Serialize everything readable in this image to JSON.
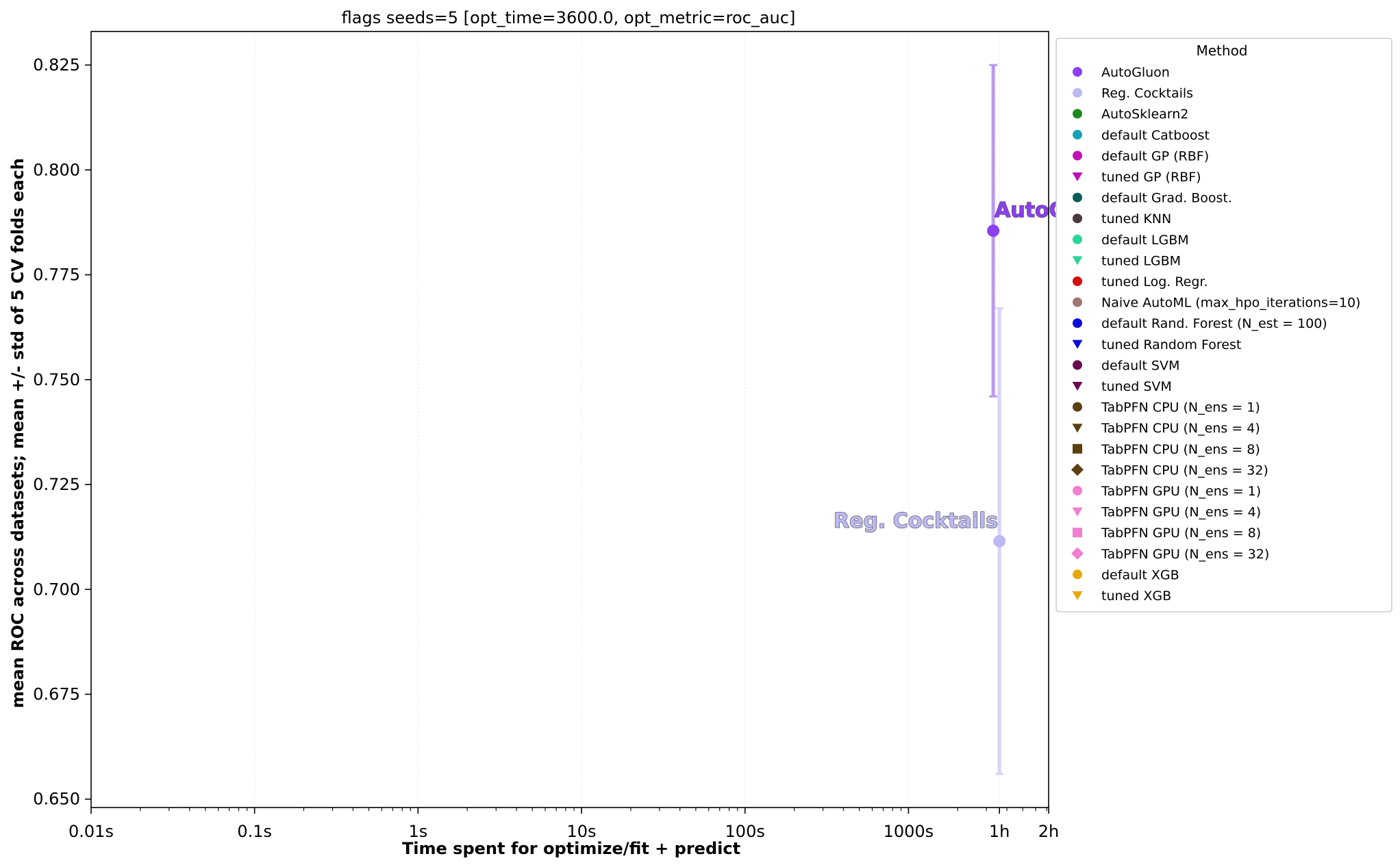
{
  "chart_data": {
    "type": "scatter",
    "title": "flags seeds=5 [opt_time=3600.0, opt_metric=roc_auc]",
    "xlabel": "Time spent for optimize/fit + predict",
    "ylabel": "mean ROC across datasets; mean +/- std of 5 CV folds each",
    "x_scale": "log",
    "xlim_seconds": [
      0.01,
      7200
    ],
    "ylim": [
      0.648,
      0.833
    ],
    "x_ticks": [
      {
        "value": 0.01,
        "label": "0.01s"
      },
      {
        "value": 0.1,
        "label": "0.1s"
      },
      {
        "value": 1,
        "label": "1s"
      },
      {
        "value": 10,
        "label": "10s"
      },
      {
        "value": 100,
        "label": "100s"
      },
      {
        "value": 1000,
        "label": "1000s"
      },
      {
        "value": 3600,
        "label": "1h"
      },
      {
        "value": 7200,
        "label": "2h"
      }
    ],
    "y_ticks": [
      {
        "value": 0.65,
        "label": "0.650"
      },
      {
        "value": 0.675,
        "label": "0.675"
      },
      {
        "value": 0.7,
        "label": "0.700"
      },
      {
        "value": 0.725,
        "label": "0.725"
      },
      {
        "value": 0.75,
        "label": "0.750"
      },
      {
        "value": 0.775,
        "label": "0.775"
      },
      {
        "value": 0.8,
        "label": "0.800"
      },
      {
        "value": 0.825,
        "label": "0.825"
      }
    ],
    "grid": "vertical-dotted",
    "points": [
      {
        "name": "AutoGluon",
        "x": 3300,
        "y": 0.7855,
        "y_low": 0.746,
        "y_high": 0.825,
        "color": "#8a3ff0",
        "err_color": "#bb99f0",
        "label": "AutoGluon",
        "label_side": "right"
      },
      {
        "name": "Reg. Cocktails",
        "x": 3600,
        "y": 0.7115,
        "y_low": 0.656,
        "y_high": 0.767,
        "color": "#bdb9f3",
        "err_color": "#d6d3f8",
        "label": "Reg. Cocktails",
        "label_side": "left"
      }
    ],
    "legend": {
      "title": "Method",
      "placement": "outside-right-top",
      "entries": [
        {
          "label": "AutoGluon",
          "color": "#8a3ff0",
          "marker": "circle"
        },
        {
          "label": "Reg. Cocktails",
          "color": "#bdb9f3",
          "marker": "circle"
        },
        {
          "label": "AutoSklearn2",
          "color": "#1a8a1a",
          "marker": "circle"
        },
        {
          "label": "default Catboost",
          "color": "#13a3b5",
          "marker": "circle"
        },
        {
          "label": "default GP (RBF)",
          "color": "#c20fb8",
          "marker": "circle"
        },
        {
          "label": "tuned GP (RBF)",
          "color": "#c20fb8",
          "marker": "triangle"
        },
        {
          "label": "default Grad. Boost.",
          "color": "#0b5a5a",
          "marker": "circle"
        },
        {
          "label": "tuned KNN",
          "color": "#4d3a40",
          "marker": "circle"
        },
        {
          "label": "default LGBM",
          "color": "#2bd69a",
          "marker": "circle"
        },
        {
          "label": "tuned LGBM",
          "color": "#2bd69a",
          "marker": "triangle"
        },
        {
          "label": "tuned Log. Regr.",
          "color": "#d40f0f",
          "marker": "circle"
        },
        {
          "label": "Naive AutoML (max_hpo_iterations=10)",
          "color": "#9e7670",
          "marker": "circle"
        },
        {
          "label": "default Rand. Forest (N_est = 100)",
          "color": "#0c0cdb",
          "marker": "circle"
        },
        {
          "label": "tuned Random Forest",
          "color": "#0c0cdb",
          "marker": "triangle"
        },
        {
          "label": "default SVM",
          "color": "#6b0b4d",
          "marker": "circle"
        },
        {
          "label": "tuned SVM",
          "color": "#6b0b4d",
          "marker": "triangle"
        },
        {
          "label": "TabPFN CPU (N_ens =  1)",
          "color": "#5a4010",
          "marker": "circle"
        },
        {
          "label": "TabPFN CPU (N_ens =  4)",
          "color": "#5a4010",
          "marker": "triangle"
        },
        {
          "label": "TabPFN CPU (N_ens =  8)",
          "color": "#5a4010",
          "marker": "square"
        },
        {
          "label": "TabPFN CPU (N_ens = 32)",
          "color": "#5a4010",
          "marker": "diamond"
        },
        {
          "label": "TabPFN GPU (N_ens =  1)",
          "color": "#f07fd0",
          "marker": "circle"
        },
        {
          "label": "TabPFN GPU (N_ens =  4)",
          "color": "#f07fd0",
          "marker": "triangle"
        },
        {
          "label": "TabPFN GPU (N_ens =  8)",
          "color": "#f07fd0",
          "marker": "square"
        },
        {
          "label": "TabPFN GPU (N_ens = 32)",
          "color": "#f07fd0",
          "marker": "diamond"
        },
        {
          "label": "default XGB",
          "color": "#e6a80c",
          "marker": "circle"
        },
        {
          "label": "tuned XGB",
          "color": "#e6a80c",
          "marker": "triangle"
        }
      ]
    }
  }
}
